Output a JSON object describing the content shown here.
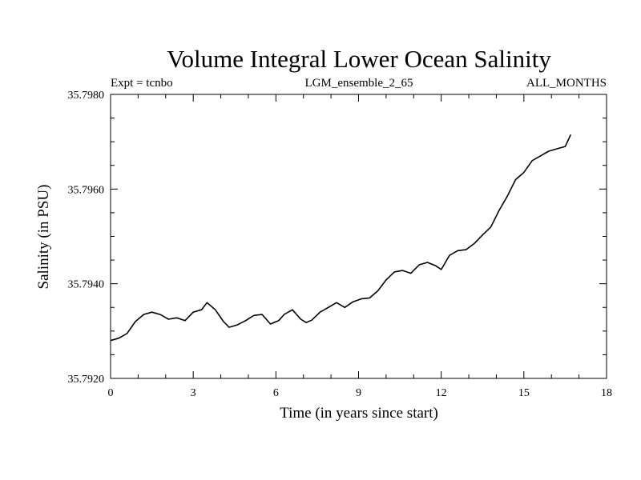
{
  "chart_data": {
    "type": "line",
    "title": "Volume Integral Lower Ocean Salinity",
    "subtitle_left": "Expt = tcnbo",
    "subtitle_center": "LGM_ensemble_2_65",
    "subtitle_right": "ALL_MONTHS",
    "xlabel": "Time (in years since start)",
    "ylabel": "Salinity (in PSU)",
    "xlim": [
      0,
      18
    ],
    "ylim": [
      35.792,
      35.798
    ],
    "xticks": [
      0,
      3,
      6,
      9,
      12,
      15,
      18
    ],
    "xtick_labels": [
      "0",
      "3",
      "6",
      "9",
      "12",
      "15",
      "18"
    ],
    "yticks": [
      35.792,
      35.794,
      35.796,
      35.798
    ],
    "ytick_labels": [
      "35.7920",
      "35.7940",
      "35.7960",
      "35.7980"
    ],
    "grid": false,
    "series": [
      {
        "name": "salinity",
        "color": "#000000",
        "x": [
          0,
          0.3,
          0.6,
          0.9,
          1.2,
          1.5,
          1.8,
          2.1,
          2.4,
          2.7,
          3.0,
          3.3,
          3.5,
          3.8,
          4.1,
          4.3,
          4.6,
          4.9,
          5.2,
          5.5,
          5.8,
          6.1,
          6.3,
          6.6,
          6.9,
          7.1,
          7.3,
          7.6,
          7.9,
          8.2,
          8.5,
          8.8,
          9.1,
          9.4,
          9.7,
          10.0,
          10.3,
          10.6,
          10.9,
          11.2,
          11.5,
          11.8,
          12.0,
          12.3,
          12.6,
          12.9,
          13.2,
          13.5,
          13.8,
          14.1,
          14.4,
          14.7,
          15.0,
          15.3,
          15.6,
          15.9,
          16.2,
          16.5,
          16.7
        ],
        "values": [
          35.7928,
          35.79285,
          35.79295,
          35.7932,
          35.79335,
          35.7934,
          35.79335,
          35.79325,
          35.79328,
          35.79322,
          35.7934,
          35.79345,
          35.7936,
          35.79345,
          35.7932,
          35.79308,
          35.79313,
          35.79322,
          35.79333,
          35.79335,
          35.79315,
          35.79322,
          35.79335,
          35.79345,
          35.79325,
          35.79318,
          35.79323,
          35.7934,
          35.7935,
          35.7936,
          35.7935,
          35.79362,
          35.79368,
          35.7937,
          35.79385,
          35.79408,
          35.79425,
          35.79428,
          35.79422,
          35.7944,
          35.79445,
          35.79438,
          35.7943,
          35.7946,
          35.7947,
          35.79472,
          35.79485,
          35.79503,
          35.7952,
          35.79555,
          35.79585,
          35.7962,
          35.79635,
          35.7966,
          35.7967,
          35.7968,
          35.79685,
          35.7969,
          35.79715
        ]
      }
    ]
  }
}
